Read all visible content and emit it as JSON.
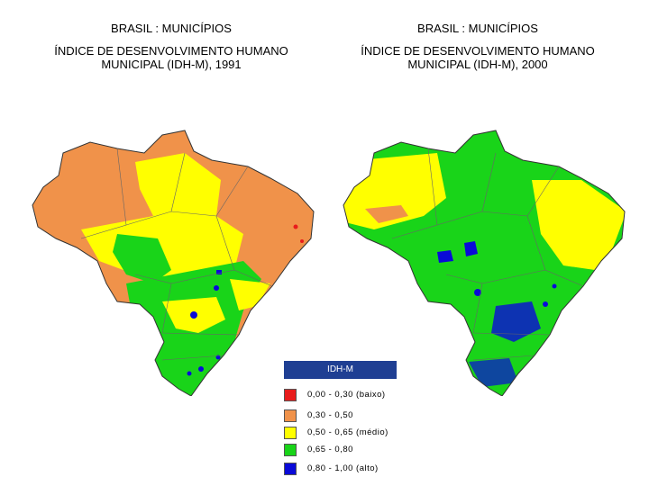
{
  "maps": [
    {
      "id": "map-1991",
      "title_line1": "BRASIL : MUNICÍPIOS",
      "title_line2": "ÍNDICE DE DESENVOLVIMENTO HUMANO",
      "title_line3": "MUNICIPAL (IDH-M), 1991"
    },
    {
      "id": "map-2000",
      "title_line1": "BRASIL : MUNICÍPIOS",
      "title_line2": "ÍNDICE DE DESENVOLVIMENTO HUMANO",
      "title_line3": "MUNICIPAL (IDH-M), 2000"
    }
  ],
  "legend": {
    "title": "IDH-M",
    "items": [
      {
        "label": "0,00 - 0,30 (baixo)",
        "color": "#e81c1c"
      },
      {
        "label": "0,30 - 0,50",
        "color": "#f0924a"
      },
      {
        "label": "0,50 - 0,65 (médio)",
        "color": "#ffff00"
      },
      {
        "label": "0,65 - 0,80",
        "color": "#19d419"
      },
      {
        "label": "0,80 - 1,00 (alto)",
        "color": "#0a0ad8"
      }
    ]
  }
}
